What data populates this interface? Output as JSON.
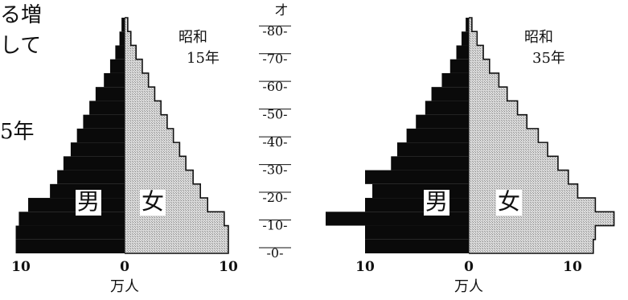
{
  "page_text": {
    "fragments": [
      "る増",
      "して",
      "5年"
    ],
    "age_unit": "才"
  },
  "colors": {
    "male": "#0a0a0a",
    "female": "#cfcfcf",
    "ink": "#111111"
  },
  "chart_data": [
    {
      "type": "bar",
      "title": "昭和\n15年",
      "title_lines": [
        "昭和",
        "15年"
      ],
      "xlabel": "万人",
      "ylabel": "才",
      "orientation": "horizontal-population-pyramid",
      "x_ticks": [
        "10",
        "0",
        "10"
      ],
      "y_ticks": [
        "0",
        "10",
        "20",
        "30",
        "40",
        "50",
        "60",
        "70",
        "80"
      ],
      "xlim": [
        -10,
        10
      ],
      "ylim": [
        0,
        85
      ],
      "sex_labels": {
        "male": "男",
        "female": "女"
      },
      "age_bands": [
        0,
        5,
        10,
        15,
        20,
        25,
        30,
        35,
        40,
        45,
        50,
        55,
        60,
        65,
        70,
        75,
        80,
        85
      ],
      "series": [
        {
          "name": "男",
          "values": [
            10.5,
            10.5,
            10.2,
            9.3,
            7.2,
            6.5,
            5.9,
            5.2,
            4.6,
            4.0,
            3.4,
            2.8,
            2.0,
            1.4,
            0.9,
            0.5,
            0.3
          ]
        },
        {
          "name": "女",
          "values": [
            10.0,
            10.0,
            9.6,
            8.0,
            7.3,
            6.6,
            5.9,
            5.3,
            4.7,
            4.1,
            3.5,
            2.9,
            2.3,
            1.7,
            1.1,
            0.6,
            0.3
          ]
        }
      ]
    },
    {
      "type": "bar",
      "title": "昭和\n35年",
      "title_lines": [
        "昭和",
        "35年"
      ],
      "xlabel": "万人",
      "ylabel": "才",
      "orientation": "horizontal-population-pyramid",
      "x_ticks": [
        "10",
        "0",
        "10"
      ],
      "y_ticks": [
        "0",
        "10",
        "20",
        "30",
        "40",
        "50",
        "60",
        "70",
        "80"
      ],
      "xlim": [
        -10,
        10
      ],
      "ylim": [
        0,
        85
      ],
      "sex_labels": {
        "male": "男",
        "female": "女"
      },
      "age_bands": [
        0,
        5,
        10,
        15,
        20,
        25,
        30,
        35,
        40,
        45,
        50,
        55,
        60,
        65,
        70,
        75,
        80,
        85
      ],
      "series": [
        {
          "name": "男",
          "values": [
            10.0,
            10.0,
            13.8,
            10.0,
            9.3,
            10.0,
            7.5,
            6.9,
            6.0,
            5.1,
            4.2,
            3.6,
            2.6,
            1.8,
            1.2,
            0.7,
            0.3
          ]
        },
        {
          "name": "女",
          "values": [
            12.0,
            12.2,
            14.0,
            12.2,
            10.5,
            9.6,
            8.6,
            7.6,
            6.7,
            5.6,
            4.7,
            3.7,
            2.9,
            2.0,
            1.4,
            0.8,
            0.3
          ]
        }
      ]
    }
  ]
}
